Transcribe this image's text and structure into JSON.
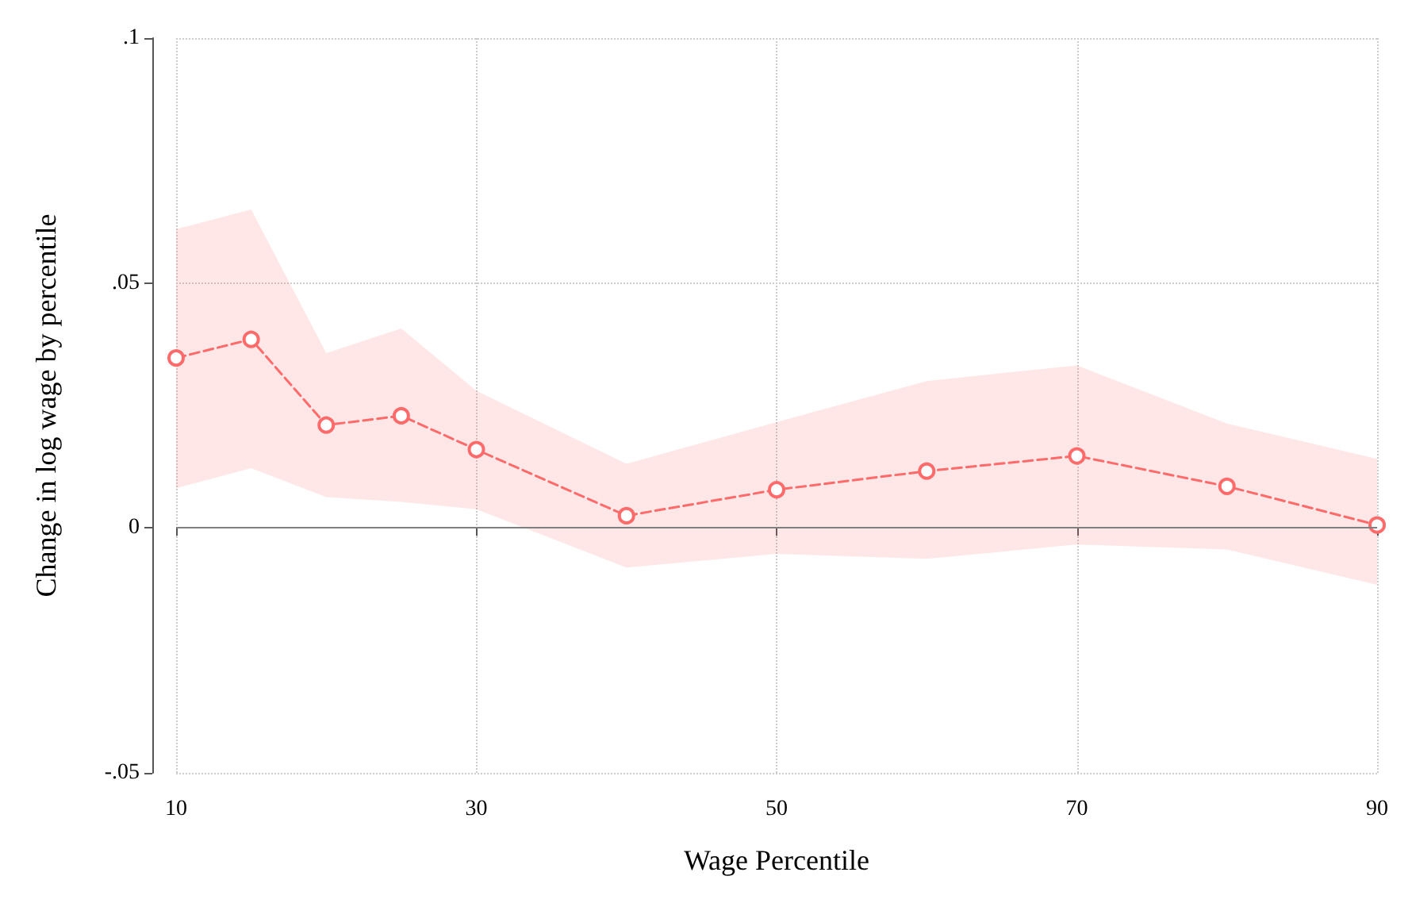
{
  "chart_data": {
    "type": "line",
    "xlabel": "Wage Percentile",
    "ylabel": "Change in log wage by percentile",
    "x": [
      10,
      15,
      20,
      25,
      30,
      40,
      50,
      60,
      70,
      80,
      90
    ],
    "series": [
      {
        "color": "#ff6b6b",
        "values": [
          0.0347,
          0.0385,
          0.021,
          0.0229,
          0.016,
          0.0025,
          0.0078,
          0.0116,
          0.0147,
          0.0085,
          0.0006
        ],
        "upper": [
          0.061,
          0.065,
          0.0357,
          0.0407,
          0.028,
          0.0131,
          0.0216,
          0.03,
          0.0332,
          0.0213,
          0.0141
        ],
        "lower": [
          0.0081,
          0.0122,
          0.0063,
          0.0053,
          0.0038,
          -0.0081,
          -0.0053,
          -0.0063,
          -0.0034,
          -0.0044,
          -0.0116
        ]
      }
    ],
    "xlim": [
      10,
      90
    ],
    "xticks": [
      10,
      30,
      50,
      70,
      90
    ],
    "ylim": [
      -0.05,
      0.1
    ],
    "yticks": [
      {
        "value": -0.05,
        "label": "-.05"
      },
      {
        "value": 0,
        "label": "0"
      },
      {
        "value": 0.05,
        "label": ".05"
      },
      {
        "value": 0.1,
        "label": ".1"
      }
    ],
    "ref_lines": [
      {
        "axis": "y",
        "value": 0,
        "color": "#7f7f7f"
      }
    ],
    "grid": true,
    "marker": "circle",
    "line_style": "dashed"
  }
}
